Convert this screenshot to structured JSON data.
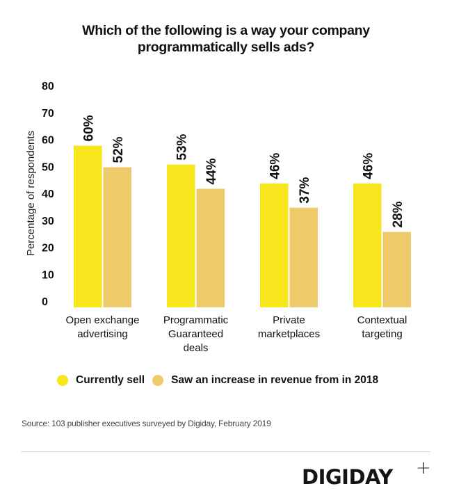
{
  "chart_data": {
    "type": "bar",
    "title": "Which of the following is a way your company programmatically sells ads?",
    "title_lines": [
      "Which of the following is a way your company",
      "programmatically sells ads?"
    ],
    "xlabel": "",
    "ylabel": "Percentage of respondents",
    "ylim": [
      0,
      80
    ],
    "yticks": [
      0,
      10,
      20,
      30,
      40,
      50,
      60,
      70,
      80
    ],
    "grid": false,
    "legend_position": "bottom",
    "categories": [
      [
        "Open exchange",
        "advertising"
      ],
      [
        "Programmatic",
        "Guaranteed",
        "deals"
      ],
      [
        "Private",
        "marketplaces"
      ],
      [
        "Contextual",
        "targeting"
      ]
    ],
    "series": [
      {
        "name": "Currently sell",
        "color": "#F7E51D",
        "values": [
          60,
          53,
          46,
          46
        ],
        "labels": [
          "60%",
          "53%",
          "46%",
          "46%"
        ]
      },
      {
        "name": "Saw an increase in revenue from in 2018",
        "color": "#EECA6A",
        "values": [
          52,
          44,
          37,
          28
        ],
        "labels": [
          "52%",
          "44%",
          "37%",
          "28%"
        ]
      }
    ]
  },
  "legend": {
    "items": [
      {
        "label": "Currently sell",
        "color": "#F7E51D"
      },
      {
        "label": "Saw an increase in revenue from in 2018",
        "color": "#EECA6A"
      }
    ]
  },
  "footer": {
    "source": "Source: 103 publisher executives surveyed by Digiday,  February 2019",
    "logo": "DIGIDAY",
    "logo_plus": "+"
  }
}
